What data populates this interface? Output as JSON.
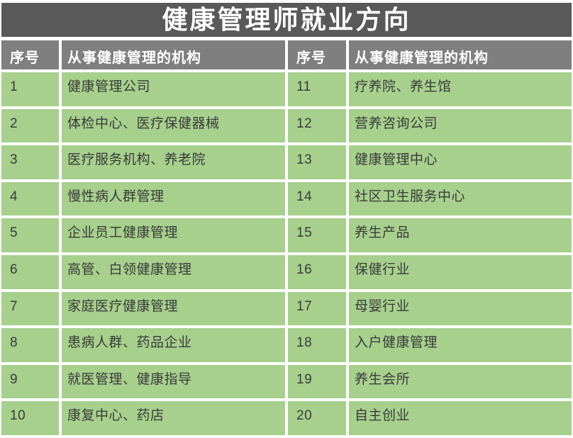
{
  "title": "健康管理师就业方向",
  "columns": {
    "no_label": "序号",
    "org_label": "从事健康管理的机构"
  },
  "rows": [
    {
      "left_no": "1",
      "left_org": "健康管理公司",
      "right_no": "11",
      "right_org": "疗养院、养生馆"
    },
    {
      "left_no": "2",
      "left_org": "体检中心、医疗保健器械",
      "right_no": "12",
      "right_org": "营养咨询公司"
    },
    {
      "left_no": "3",
      "left_org": "医疗服务机构、养老院",
      "right_no": "13",
      "right_org": "健康管理中心"
    },
    {
      "left_no": "4",
      "left_org": "慢性病人群管理",
      "right_no": "14",
      "right_org": "社区卫生服务中心"
    },
    {
      "left_no": "5",
      "left_org": "企业员工健康管理",
      "right_no": "15",
      "right_org": "养生产品"
    },
    {
      "left_no": "6",
      "left_org": "高管、白领健康管理",
      "right_no": "16",
      "right_org": "保健行业"
    },
    {
      "left_no": "7",
      "left_org": "家庭医疗健康管理",
      "right_no": "17",
      "right_org": "母婴行业"
    },
    {
      "left_no": "8",
      "left_org": "患病人群、药品企业",
      "right_no": "18",
      "right_org": "入户健康管理"
    },
    {
      "left_no": "9",
      "left_org": "就医管理、健康指导",
      "right_no": "19",
      "right_org": "养生会所"
    },
    {
      "left_no": "10",
      "left_org": "康复中心、药店",
      "right_no": "20",
      "right_org": "自主创业"
    }
  ],
  "colors": {
    "banner_bg": "#595959",
    "banner_text": "#ffffff",
    "header_bg": "#7f7f7f",
    "header_text": "#ffffff",
    "cell_bg": "#a6d08c",
    "cell_text": "#3a3a3a",
    "gap": "#ffffff"
  }
}
